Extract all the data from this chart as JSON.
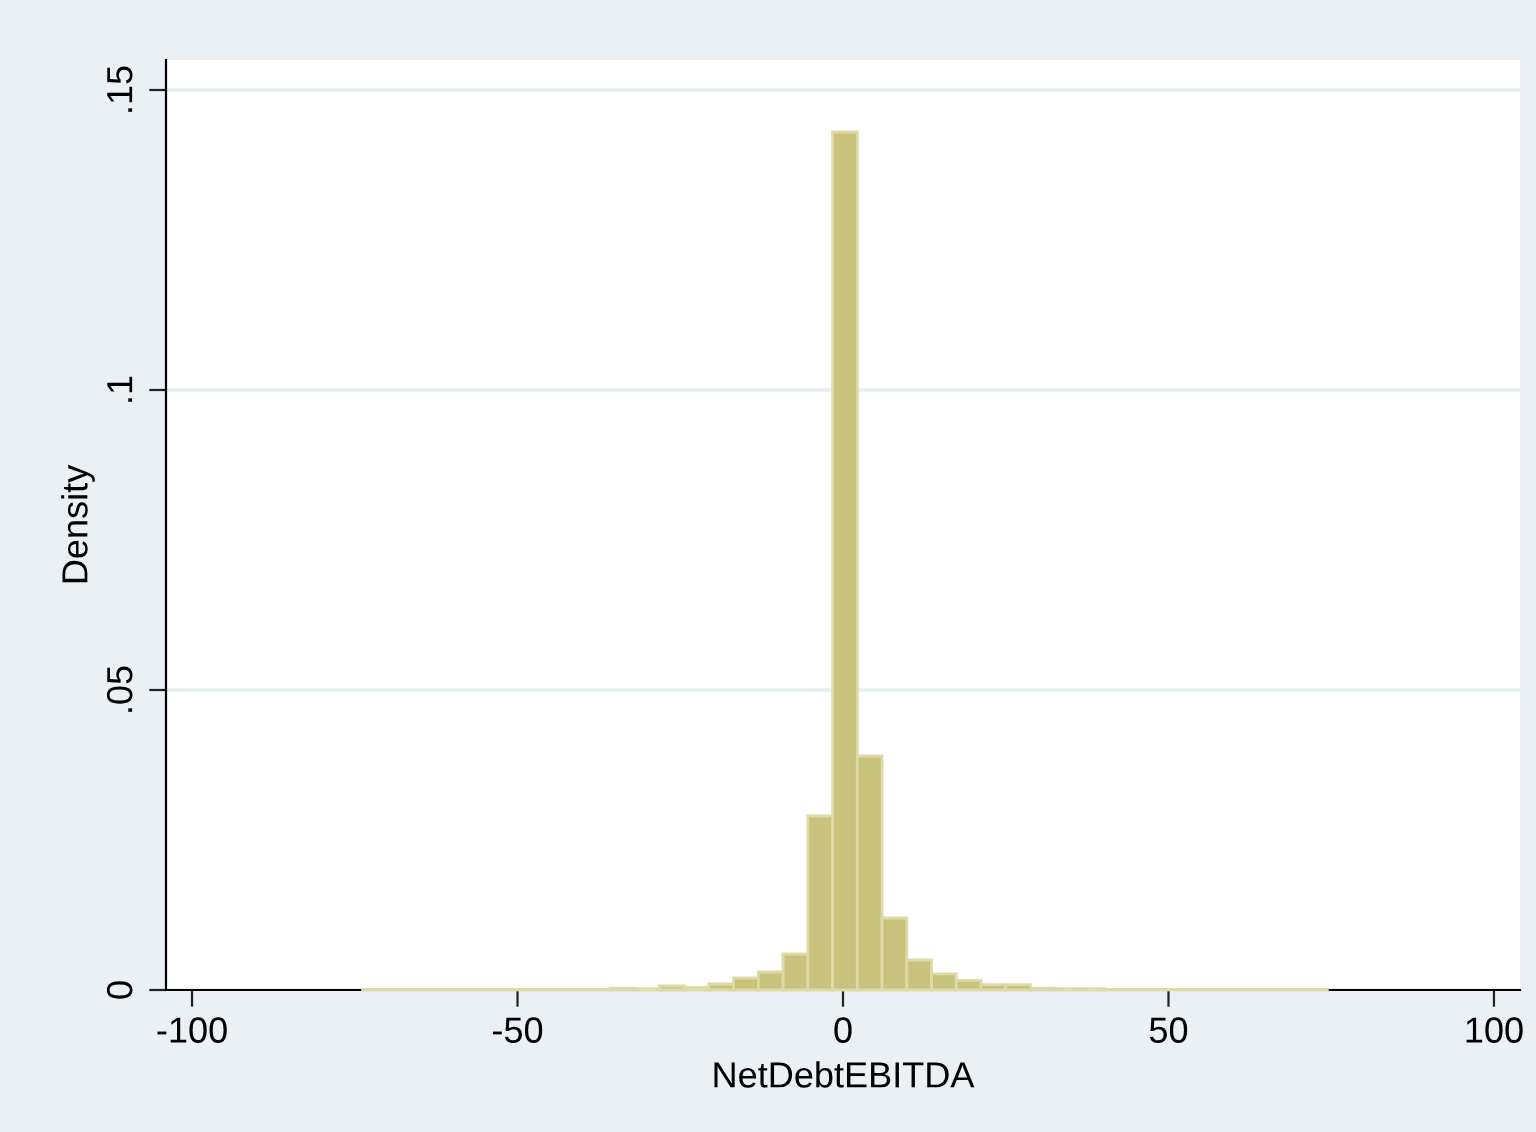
{
  "chart_data": {
    "type": "histogram",
    "xlabel": "NetDebtEBITDA",
    "ylabel": "Density",
    "bins": [
      -73.8,
      -70.0,
      -66.2,
      -62.4,
      -58.6,
      -54.8,
      -51.0,
      -47.2,
      -43.4,
      -39.6,
      -35.8,
      -32.0,
      -28.2,
      -24.4,
      -20.6,
      -16.8,
      -13.0,
      -9.2,
      -5.4,
      -1.6,
      2.2,
      6.0,
      9.8,
      13.6,
      17.4,
      21.2,
      25.0,
      28.8,
      32.6,
      36.4,
      40.2,
      44.0,
      47.8,
      51.6,
      55.4,
      59.2,
      63.0,
      66.8,
      70.6,
      74.4
    ],
    "values": [
      0.0001,
      0.0001,
      0.0001,
      0.0001,
      0.0001,
      0.0001,
      0.0001,
      0.0001,
      0.0001,
      0.0001,
      0.0003,
      0.0002,
      0.0007,
      0.0004,
      0.001,
      0.002,
      0.003,
      0.006,
      0.029,
      0.143,
      0.039,
      0.012,
      0.005,
      0.0027,
      0.0016,
      0.0009,
      0.0009,
      0.0003,
      0.0002,
      0.0002,
      0.0001,
      0.0001,
      0.0001,
      0.0001,
      0.0001,
      0.0001,
      0.0001,
      0.0001,
      0.0001
    ],
    "color": "#c8c27c",
    "xlim": [
      -104,
      104
    ],
    "xticks": [
      {
        "value": -100,
        "label": "-100"
      },
      {
        "value": -50,
        "label": "-50"
      },
      0,
      50,
      100
    ],
    "ylim": [
      0,
      0.155
    ],
    "yticks": [
      0,
      {
        "value": 0.05,
        "label": ".05"
      },
      {
        "value": 0.1,
        "label": ".1"
      },
      {
        "value": 0.15,
        "label": ".15"
      }
    ],
    "grid": "y"
  }
}
